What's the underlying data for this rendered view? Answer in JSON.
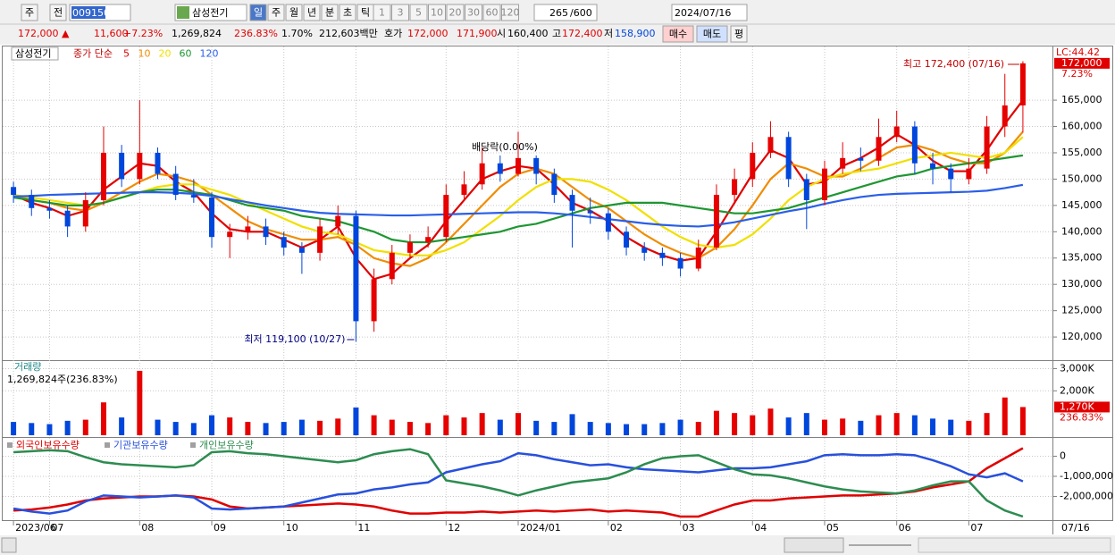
{
  "toolbar": {
    "market": "주",
    "type": "전",
    "code": "009150",
    "name": "삼성전기",
    "periods": [
      "일",
      "주",
      "월",
      "년",
      "분",
      "초",
      "틱"
    ],
    "intervals": [
      "1",
      "3",
      "5",
      "10",
      "20",
      "30",
      "60",
      "120"
    ],
    "count": "265",
    "max_count": "/600",
    "date": "2024/07/16"
  },
  "quote": {
    "price": "172,000 ▲",
    "change": "11,600",
    "change_pct": "+7.23%",
    "volume": "1,269,824",
    "volume_ratio": "236.83%",
    "turnover": "1.70%",
    "amount": "212,603백만",
    "bid_ask_label": "호가",
    "ask": "172,000",
    "bid": "171,900",
    "open_label": "시",
    "open": "160,400",
    "high_label": "고",
    "high": "172,400",
    "low_label": "저",
    "low": "158,900",
    "buy": "매수",
    "sell": "매도",
    "eval": "평"
  },
  "chart_data": [
    {
      "type": "candlestick",
      "name": "삼성전기",
      "ma_label": "종가 단순",
      "categories": [
        "2023/06",
        null,
        "07",
        null,
        null,
        null,
        null,
        "08",
        null,
        null,
        null,
        "09",
        null,
        null,
        null,
        "10",
        null,
        null,
        null,
        "11",
        null,
        null,
        null,
        null,
        "12",
        null,
        null,
        null,
        "2024/01",
        null,
        null,
        null,
        null,
        "02",
        null,
        null,
        null,
        "03",
        null,
        null,
        null,
        "04",
        null,
        null,
        null,
        "05",
        null,
        null,
        null,
        "06",
        null,
        null,
        null,
        "07",
        null,
        null,
        null
      ],
      "open": [
        148500,
        147000,
        144500,
        144000,
        141000,
        146000,
        155000,
        150000,
        155000,
        151000,
        147000,
        146500,
        139000,
        140000,
        141000,
        139000,
        137000,
        136000,
        141000,
        143000,
        123000,
        131000,
        136000,
        138000,
        139000,
        147000,
        149000,
        153000,
        151000,
        154000,
        151000,
        147000,
        144000,
        143500,
        140000,
        137000,
        136000,
        135000,
        133000,
        137000,
        147000,
        150000,
        155000,
        158000,
        150000,
        146000,
        152000,
        154000,
        153500,
        158000,
        160000,
        153000,
        152000,
        150000,
        152000,
        160000,
        164000
      ],
      "high": [
        149500,
        148000,
        146000,
        145000,
        147500,
        160000,
        156500,
        165000,
        156000,
        152500,
        150000,
        147500,
        141500,
        143000,
        142500,
        140000,
        138000,
        142500,
        145000,
        144000,
        133000,
        137500,
        139500,
        141000,
        149000,
        151500,
        156000,
        154500,
        159000,
        154500,
        152000,
        148000,
        146500,
        144500,
        141000,
        138000,
        137000,
        136000,
        138500,
        149000,
        152000,
        157000,
        161000,
        159000,
        151000,
        153500,
        157000,
        156000,
        161500,
        163000,
        161000,
        155000,
        153000,
        154000,
        162000,
        170000,
        172400
      ],
      "low": [
        145500,
        143000,
        142500,
        139000,
        140000,
        145000,
        148500,
        149000,
        150000,
        146000,
        145500,
        137000,
        135000,
        138500,
        137500,
        135500,
        132000,
        134500,
        139500,
        119100,
        121000,
        130000,
        135000,
        137000,
        138000,
        146000,
        148000,
        149500,
        150500,
        149000,
        145500,
        137000,
        141500,
        138500,
        135500,
        134500,
        133500,
        131500,
        132500,
        136500,
        145500,
        148500,
        154000,
        148500,
        140500,
        145000,
        151000,
        151500,
        152500,
        157000,
        151000,
        149000,
        147500,
        149000,
        151000,
        158000,
        158900
      ],
      "close": [
        147000,
        144500,
        144000,
        141000,
        146000,
        155000,
        150000,
        155000,
        151000,
        147000,
        146500,
        139000,
        140000,
        141000,
        139000,
        137000,
        136000,
        141000,
        143000,
        123000,
        131000,
        136000,
        138000,
        139000,
        147000,
        149000,
        153000,
        151000,
        154000,
        151000,
        147000,
        144000,
        143500,
        140000,
        137000,
        136000,
        135000,
        133000,
        137000,
        147000,
        150000,
        155000,
        158000,
        150000,
        146000,
        152000,
        154000,
        153500,
        158000,
        160000,
        153000,
        152000,
        150000,
        152000,
        160000,
        164000,
        172000
      ],
      "up_color": "#e60000",
      "down_color": "#0046dc",
      "series": [
        {
          "name": "5",
          "color": "#e00000",
          "values": [
            147000,
            145500,
            144500,
            143000,
            144000,
            148000,
            150500,
            153000,
            152500,
            149500,
            147500,
            143500,
            140500,
            140000,
            140000,
            138500,
            137000,
            138500,
            141000,
            135000,
            131000,
            132000,
            135000,
            137500,
            142000,
            146000,
            150000,
            151500,
            152500,
            152000,
            149000,
            145500,
            144000,
            142000,
            139000,
            137000,
            135500,
            134500,
            135000,
            140000,
            145500,
            151000,
            155500,
            154000,
            149000,
            149500,
            152500,
            154000,
            156000,
            158500,
            156500,
            153500,
            151500,
            151500,
            155500,
            160500,
            165000
          ]
        },
        {
          "name": "10",
          "color": "#f08c00",
          "values": [
            147000,
            146000,
            145500,
            144500,
            144000,
            145500,
            147500,
            149500,
            151000,
            150500,
            149500,
            147000,
            144500,
            142000,
            140500,
            139500,
            138500,
            138500,
            139000,
            137500,
            135000,
            134000,
            133500,
            135000,
            138000,
            141500,
            145000,
            148500,
            151000,
            152000,
            151000,
            148500,
            146000,
            144500,
            142000,
            139500,
            137500,
            136000,
            135000,
            137000,
            140500,
            145000,
            150000,
            153000,
            152000,
            150500,
            150500,
            152000,
            154000,
            156000,
            156500,
            155500,
            154000,
            153000,
            153000,
            155000,
            159000
          ]
        },
        {
          "name": "20",
          "color": "#f0e000",
          "values": [
            147000,
            146500,
            146000,
            145500,
            145000,
            145500,
            146500,
            147500,
            148500,
            149000,
            149000,
            148000,
            147000,
            145500,
            144000,
            142500,
            141000,
            140000,
            139500,
            138000,
            136500,
            136000,
            135500,
            135500,
            136500,
            138000,
            140500,
            143000,
            146000,
            148500,
            150000,
            150000,
            149500,
            148000,
            146000,
            143500,
            141000,
            139000,
            137500,
            137000,
            137500,
            139500,
            142500,
            146000,
            148500,
            150000,
            151000,
            151500,
            152000,
            153000,
            154000,
            154500,
            155000,
            154500,
            154000,
            155000,
            158000
          ]
        },
        {
          "name": "60",
          "color": "#1e9632",
          "values": [
            146500,
            146000,
            145500,
            145000,
            145000,
            145500,
            146500,
            147500,
            148000,
            148000,
            147500,
            147000,
            146000,
            145000,
            144500,
            144000,
            143000,
            142500,
            142000,
            141000,
            140000,
            138500,
            138000,
            138000,
            138500,
            139000,
            139500,
            140000,
            141000,
            141500,
            142500,
            143500,
            144500,
            145000,
            145500,
            145500,
            145500,
            145000,
            144500,
            144000,
            143500,
            143500,
            144000,
            144500,
            145500,
            146500,
            147500,
            148500,
            149500,
            150500,
            151000,
            152000,
            152500,
            153000,
            153500,
            154000,
            154500
          ]
        },
        {
          "name": "120",
          "color": "#2a5ee8",
          "values": [
            146700,
            146800,
            147000,
            147100,
            147200,
            147300,
            147400,
            147500,
            147500,
            147400,
            147200,
            146800,
            146200,
            145600,
            145000,
            144500,
            144000,
            143600,
            143400,
            143300,
            143200,
            143100,
            143100,
            143200,
            143300,
            143400,
            143500,
            143600,
            143700,
            143700,
            143500,
            143200,
            142800,
            142400,
            142000,
            141600,
            141300,
            141100,
            141000,
            141300,
            141800,
            142500,
            143200,
            143900,
            144500,
            145300,
            146000,
            146600,
            147000,
            147200,
            147300,
            147400,
            147500,
            147600,
            147800,
            148300,
            148900
          ]
        }
      ],
      "ylim": [
        115600,
        175200
      ],
      "yticks": [
        {
          "value": 120000,
          "label": "120,000"
        },
        {
          "value": 125000,
          "label": "125,000"
        },
        {
          "value": 130000,
          "label": "130,000"
        },
        {
          "value": 135000,
          "label": "135,000"
        },
        {
          "value": 140000,
          "label": "140,000"
        },
        {
          "value": 145000,
          "label": "145,000"
        },
        {
          "value": 150000,
          "label": "150,000"
        },
        {
          "value": 155000,
          "label": "155,000"
        },
        {
          "value": 160000,
          "label": "160,000"
        },
        {
          "value": 165000,
          "label": "165,000"
        }
      ],
      "grid": true,
      "annotations": {
        "high": "최고 172,400 (07/16)",
        "low": "최저 119,100 (10/27)",
        "dividend": "배당락(0.00%)"
      },
      "lc_label": "LC:44.42",
      "last_price_label": "172,000",
      "last_change_label": "7.23%",
      "last_date": "07/16"
    },
    {
      "type": "bar",
      "title": "거래량",
      "subtitle": "1,269,824주(236.83%)",
      "values": [
        600000,
        550000,
        500000,
        650000,
        700000,
        1480000,
        800000,
        2900000,
        700000,
        600000,
        550000,
        900000,
        800000,
        600000,
        550000,
        600000,
        700000,
        650000,
        750000,
        1250000,
        900000,
        700000,
        600000,
        550000,
        900000,
        800000,
        1000000,
        700000,
        1000000,
        650000,
        600000,
        950000,
        600000,
        550000,
        500000,
        500000,
        550000,
        700000,
        600000,
        1100000,
        1000000,
        900000,
        1200000,
        800000,
        1000000,
        700000,
        750000,
        650000,
        900000,
        1000000,
        900000,
        750000,
        700000,
        650000,
        1000000,
        1700000,
        1270000
      ],
      "ylim": [
        0,
        3300000
      ],
      "yticks": [
        {
          "value": 2000000,
          "label": "2,000K"
        },
        {
          "value": 3000000,
          "label": "3,000K"
        }
      ],
      "last_label": "1,270K",
      "last_ratio": "236.83%"
    },
    {
      "type": "line",
      "series": [
        {
          "name": "외국인보유수량",
          "color": "#e00000",
          "values": [
            -2700000,
            -2650000,
            -2550000,
            -2400000,
            -2200000,
            -2100000,
            -2050000,
            -2000000,
            -2000000,
            -1950000,
            -2000000,
            -2150000,
            -2500000,
            -2600000,
            -2550000,
            -2500000,
            -2450000,
            -2400000,
            -2350000,
            -2400000,
            -2500000,
            -2700000,
            -2850000,
            -2850000,
            -2800000,
            -2800000,
            -2750000,
            -2800000,
            -2750000,
            -2700000,
            -2750000,
            -2700000,
            -2650000,
            -2750000,
            -2700000,
            -2750000,
            -2800000,
            -3000000,
            -3000000,
            -2700000,
            -2400000,
            -2200000,
            -2200000,
            -2100000,
            -2050000,
            -2000000,
            -1950000,
            -1950000,
            -1900000,
            -1850000,
            -1750000,
            -1550000,
            -1400000,
            -1250000,
            -600000,
            -100000,
            400000
          ]
        },
        {
          "name": "기관보유수량",
          "color": "#2850dc",
          "values": [
            -2600000,
            -2750000,
            -2850000,
            -2700000,
            -2250000,
            -1950000,
            -2000000,
            -2050000,
            -2000000,
            -1950000,
            -2050000,
            -2600000,
            -2650000,
            -2600000,
            -2550000,
            -2500000,
            -2300000,
            -2100000,
            -1900000,
            -1850000,
            -1650000,
            -1550000,
            -1400000,
            -1300000,
            -800000,
            -600000,
            -400000,
            -250000,
            150000,
            50000,
            -150000,
            -300000,
            -450000,
            -400000,
            -550000,
            -650000,
            -700000,
            -750000,
            -800000,
            -700000,
            -600000,
            -600000,
            -550000,
            -400000,
            -250000,
            50000,
            100000,
            50000,
            50000,
            100000,
            50000,
            -200000,
            -500000,
            -900000,
            -1050000,
            -850000,
            -1250000
          ]
        },
        {
          "name": "개인보유수량",
          "color": "#2d8c50",
          "values": [
            200000,
            250000,
            300000,
            250000,
            -50000,
            -300000,
            -400000,
            -450000,
            -500000,
            -550000,
            -450000,
            200000,
            250000,
            150000,
            100000,
            0,
            -100000,
            -200000,
            -300000,
            -200000,
            100000,
            250000,
            350000,
            100000,
            -1200000,
            -1350000,
            -1500000,
            -1700000,
            -1950000,
            -1700000,
            -1500000,
            -1300000,
            -1200000,
            -1100000,
            -800000,
            -400000,
            -100000,
            0,
            50000,
            -300000,
            -650000,
            -900000,
            -950000,
            -1100000,
            -1300000,
            -1500000,
            -1650000,
            -1750000,
            -1800000,
            -1850000,
            -1700000,
            -1450000,
            -1250000,
            -1250000,
            -2200000,
            -2700000,
            -3000000
          ]
        }
      ],
      "ylim": [
        -3090000,
        910000
      ],
      "yticks": [
        0,
        {
          "value": -1000000,
          "label": "-1,000,000"
        },
        {
          "value": -2000000,
          "label": "-2,000,000"
        }
      ]
    }
  ]
}
